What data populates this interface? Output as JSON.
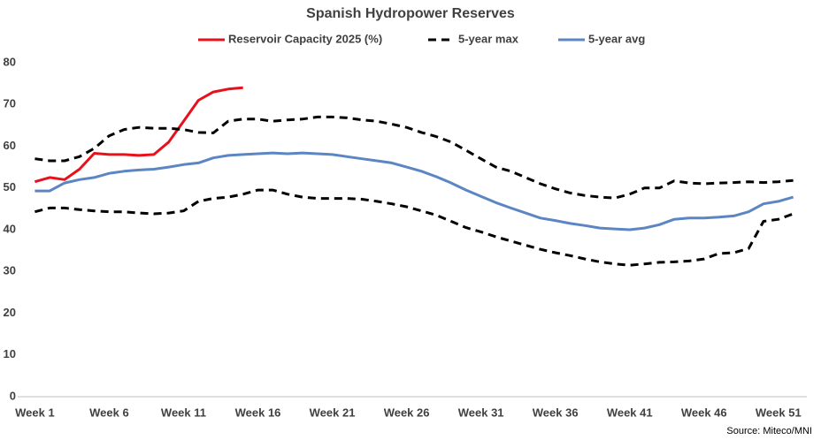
{
  "chart_data": {
    "type": "line",
    "title": "Spanish Hydropower Reserves",
    "source": "Source: Miteco/MNI",
    "categories": [
      "Week 1",
      null,
      null,
      null,
      null,
      "Week 6",
      null,
      null,
      null,
      null,
      "Week 11",
      null,
      null,
      null,
      null,
      "Week 16",
      null,
      null,
      null,
      null,
      "Week 21",
      null,
      null,
      null,
      null,
      "Week 26",
      null,
      null,
      null,
      null,
      "Week 31",
      null,
      null,
      null,
      null,
      "Week 36",
      null,
      null,
      null,
      null,
      "Week 41",
      null,
      null,
      null,
      null,
      "Week 46",
      null,
      null,
      null,
      null,
      "Week 51",
      null
    ],
    "ylim": [
      0,
      80
    ],
    "yticks": [
      0,
      10,
      20,
      30,
      40,
      50,
      60,
      70,
      80
    ],
    "grid": false,
    "series": [
      {
        "name": "Reservoir Capacity 2025 (%)",
        "color": "#e8111b",
        "dashed": false,
        "values": [
          51.5,
          52.5,
          52,
          54.5,
          58.3,
          58,
          58,
          57.8,
          58,
          61,
          66,
          71,
          73,
          73.7,
          74,
          null,
          null,
          null,
          null,
          null,
          null,
          null,
          null,
          null,
          null,
          null,
          null,
          null,
          null,
          null,
          null,
          null,
          null,
          null,
          null,
          null,
          null,
          null,
          null,
          null,
          null,
          null,
          null,
          null,
          null,
          null,
          null,
          null,
          null,
          null,
          null,
          null
        ]
      },
      {
        "name": "5-year max",
        "color": "#000000",
        "dashed": true,
        "values": [
          57,
          56.5,
          56.5,
          57.5,
          59.5,
          62.5,
          64,
          64.5,
          64.3,
          64.3,
          64,
          63.3,
          63.2,
          66,
          66.5,
          66.5,
          66,
          66.3,
          66.5,
          67,
          67,
          66.8,
          66.3,
          66,
          65.3,
          64.5,
          63.3,
          62.3,
          61,
          59,
          57,
          55,
          54,
          52.5,
          51,
          49.8,
          48.8,
          48.2,
          47.8,
          47.6,
          48.5,
          50,
          50,
          51.7,
          51.2,
          51,
          51.2,
          51.3,
          51.5,
          51.3,
          51.5,
          51.8
        ]
      },
      {
        "name": "5-year avg",
        "color": "#5b86c3",
        "dashed": false,
        "values": [
          49.3,
          49.3,
          51.2,
          52,
          52.5,
          53.5,
          54,
          54.3,
          54.5,
          55,
          55.6,
          56,
          57.2,
          57.8,
          58,
          58.2,
          58.4,
          58.2,
          58.4,
          58.2,
          58,
          57.5,
          57,
          56.5,
          56,
          55,
          54,
          52.7,
          51.2,
          49.5,
          48,
          46.5,
          45.2,
          44,
          42.8,
          42.2,
          41.5,
          41,
          40.4,
          40.2,
          40,
          40.4,
          41.2,
          42.5,
          42.8,
          42.8,
          43,
          43.3,
          44.3,
          46.2,
          46.8,
          47.8
        ]
      },
      {
        "color": "#000000",
        "dashed": true,
        "values": [
          44.3,
          45.2,
          45.2,
          44.8,
          44.5,
          44.3,
          44.3,
          44,
          43.8,
          44,
          44.5,
          46.8,
          47.5,
          47.8,
          48.5,
          49.5,
          49.5,
          48.5,
          47.8,
          47.5,
          47.5,
          47.5,
          47.3,
          46.8,
          46.2,
          45.5,
          44.5,
          43.5,
          42,
          40.5,
          39.5,
          38.3,
          37.3,
          36.3,
          35.3,
          34.5,
          33.8,
          33,
          32.3,
          31.8,
          31.5,
          31.8,
          32.2,
          32.3,
          32.5,
          33,
          34.3,
          34.5,
          35.5,
          42,
          42.5,
          43.8
        ]
      }
    ]
  }
}
